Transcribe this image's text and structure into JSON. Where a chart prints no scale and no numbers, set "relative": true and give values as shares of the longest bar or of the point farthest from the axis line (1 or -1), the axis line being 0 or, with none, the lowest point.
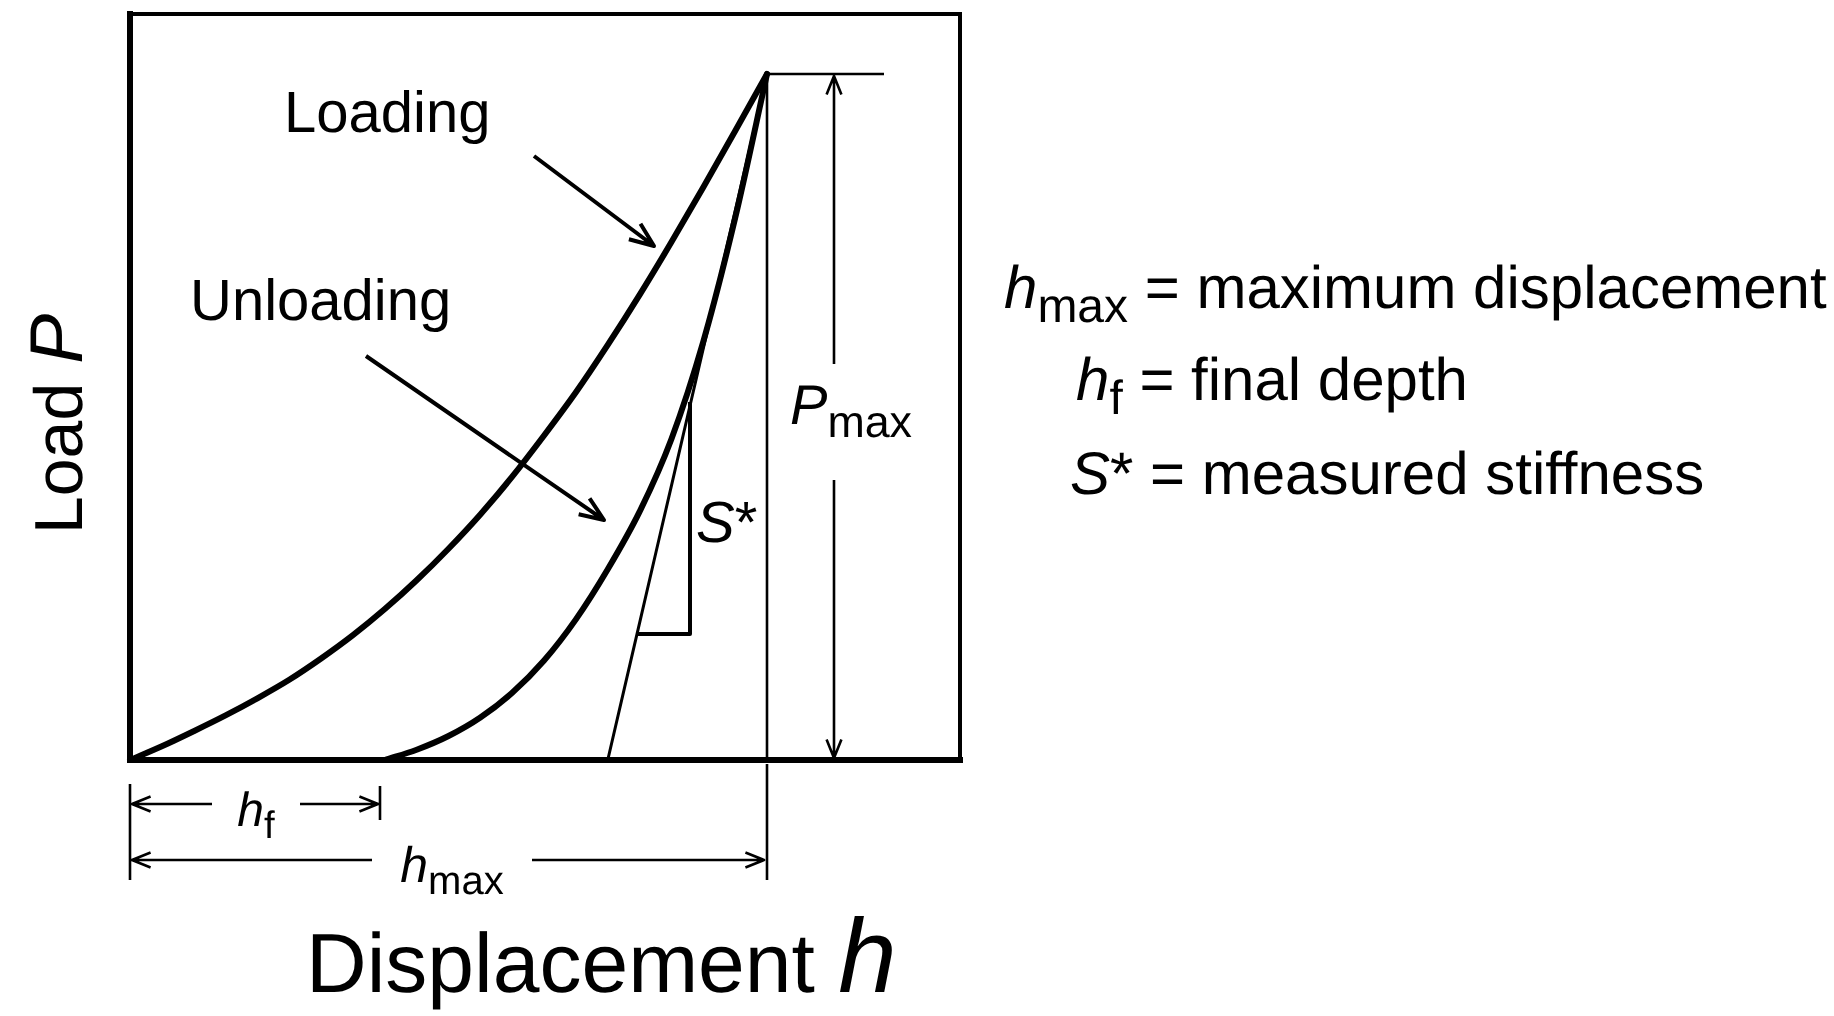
{
  "chart_data": {
    "type": "line",
    "relative": true,
    "xlabel": "Displacement h",
    "ylabel": "Load P",
    "categories": [
      null,
      null,
      null,
      null,
      null,
      null,
      null,
      null,
      null,
      null,
      null,
      null,
      null,
      null,
      null,
      null,
      null,
      null,
      null,
      null,
      null
    ],
    "series": [
      {
        "color": "#000000",
        "values": [
          0,
          0.02,
          0.042,
          0.065,
          0.09,
          0.117,
          0.148,
          0.182,
          0.22,
          0.262,
          0.308,
          0.358,
          0.413,
          0.473,
          0.536,
          0.605,
          0.678,
          0.755,
          0.835,
          0.917,
          1
        ]
      },
      {
        "color": "#000000",
        "values": [
          null,
          null,
          null,
          null,
          null,
          null,
          null,
          null,
          0,
          0.015,
          0.035,
          0.062,
          0.098,
          0.145,
          0.205,
          0.278,
          0.362,
          0.468,
          0.61,
          0.79,
          1
        ]
      },
      {
        "color": "#000000",
        "values": [
          null,
          null,
          null,
          null,
          null,
          null,
          null,
          null,
          null,
          null,
          null,
          null,
          null,
          null,
          null,
          0,
          0.2,
          0.4,
          0.6,
          0.8,
          1
        ]
      }
    ],
    "annotations": [
      "Loading",
      "Unloading",
      "P$_{max}$",
      "S*",
      "h$_{f}$",
      "h$_{max}$",
      "h$_{max}$ = maximum displacement",
      "h$_{f}$ = final depth",
      "S* = measured stiffness"
    ]
  }
}
